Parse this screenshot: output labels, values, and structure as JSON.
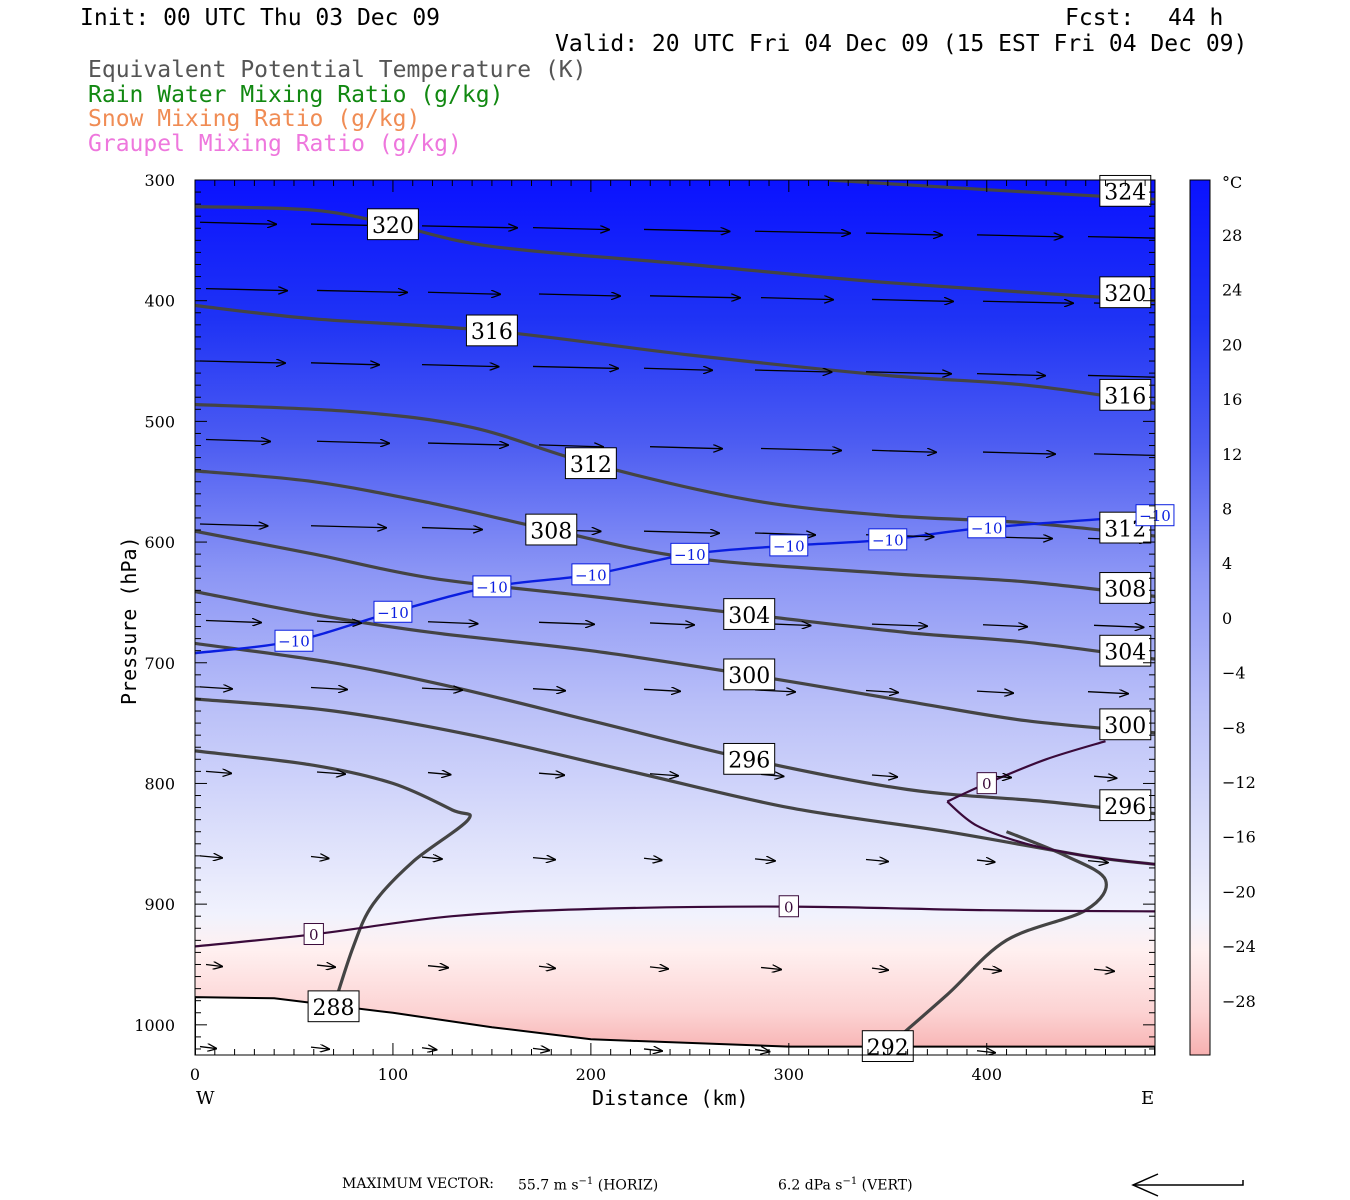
{
  "header": {
    "init": "Init: 00 UTC Thu 03 Dec 09",
    "fcst_label": "Fcst:",
    "fcst_value": "44 h",
    "valid": "Valid: 20 UTC Fri 04 Dec 09 (15 EST Fri 04 Dec 09)"
  },
  "legend": [
    {
      "text": "Equivalent Potential Temperature (K)",
      "color": "#555555"
    },
    {
      "text": "Rain Water Mixing Ratio (g/kg)",
      "color": "#118811"
    },
    {
      "text": "Snow Mixing Ratio (g/kg)",
      "color": "#f08c54"
    },
    {
      "text": "Graupel Mixing Ratio (g/kg)",
      "color": "#ee77dd"
    }
  ],
  "chart_data": {
    "type": "heatmap",
    "xlabel": "Distance (km)",
    "ylabel": "Pressure (hPa)",
    "xlim": [
      0,
      485
    ],
    "ylim": [
      1025,
      300
    ],
    "x_ticks": [
      "0",
      "100",
      "200",
      "300",
      "400"
    ],
    "y_ticks": [
      "300",
      "400",
      "500",
      "600",
      "700",
      "800",
      "900",
      "1000"
    ],
    "x_ends": [
      "W",
      "E"
    ],
    "colorbar": {
      "unit": "°C",
      "tick_labels": [
        "28",
        "24",
        "20",
        "16",
        "12",
        "8",
        "4",
        "0",
        "−4",
        "−8",
        "−12",
        "−16",
        "−20",
        "−24",
        "−28"
      ]
    },
    "theta_e_contours": [
      {
        "label": "324",
        "points": [
          [
            320,
            300
          ],
          [
            400,
            308
          ],
          [
            485,
            316
          ]
        ]
      },
      {
        "label": "320",
        "points": [
          [
            0,
            322
          ],
          [
            60,
            325
          ],
          [
            100,
            337
          ],
          [
            150,
            355
          ],
          [
            250,
            370
          ],
          [
            350,
            385
          ],
          [
            485,
            400
          ]
        ]
      },
      {
        "label": "316",
        "points": [
          [
            0,
            404
          ],
          [
            60,
            415
          ],
          [
            150,
            425
          ],
          [
            250,
            445
          ],
          [
            350,
            462
          ],
          [
            420,
            470
          ],
          [
            485,
            485
          ]
        ]
      },
      {
        "label": "312",
        "points": [
          [
            0,
            486
          ],
          [
            80,
            492
          ],
          [
            140,
            505
          ],
          [
            200,
            535
          ],
          [
            280,
            565
          ],
          [
            350,
            578
          ],
          [
            420,
            584
          ],
          [
            485,
            595
          ]
        ]
      },
      {
        "label": "308",
        "points": [
          [
            0,
            541
          ],
          [
            60,
            550
          ],
          [
            120,
            568
          ],
          [
            180,
            590
          ],
          [
            250,
            613
          ],
          [
            350,
            626
          ],
          [
            420,
            633
          ],
          [
            485,
            645
          ]
        ]
      },
      {
        "label": "304",
        "points": [
          [
            0,
            591
          ],
          [
            60,
            610
          ],
          [
            120,
            630
          ],
          [
            200,
            645
          ],
          [
            280,
            660
          ],
          [
            360,
            675
          ],
          [
            420,
            683
          ],
          [
            485,
            697
          ]
        ]
      },
      {
        "label": "300",
        "points": [
          [
            0,
            641
          ],
          [
            60,
            660
          ],
          [
            120,
            675
          ],
          [
            200,
            690
          ],
          [
            280,
            710
          ],
          [
            360,
            732
          ],
          [
            420,
            748
          ],
          [
            485,
            758
          ]
        ]
      },
      {
        "label": "296",
        "points": [
          [
            0,
            684
          ],
          [
            70,
            700
          ],
          [
            130,
            720
          ],
          [
            200,
            748
          ],
          [
            280,
            780
          ],
          [
            360,
            805
          ],
          [
            430,
            815
          ],
          [
            485,
            825
          ]
        ]
      },
      {
        "label": "",
        "points": [
          [
            0,
            730
          ],
          [
            70,
            740
          ],
          [
            140,
            760
          ],
          [
            220,
            790
          ],
          [
            300,
            820
          ],
          [
            380,
            840
          ],
          [
            450,
            860
          ],
          [
            485,
            867
          ]
        ]
      },
      {
        "label": "288",
        "points": [
          [
            0,
            773
          ],
          [
            60,
            785
          ],
          [
            100,
            800
          ],
          [
            130,
            822
          ],
          [
            138,
            830
          ],
          [
            110,
            865
          ],
          [
            90,
            900
          ],
          [
            80,
            935
          ],
          [
            70,
            985
          ]
        ]
      },
      {
        "label": "292",
        "points": [
          [
            410,
            840
          ],
          [
            440,
            860
          ],
          [
            460,
            880
          ],
          [
            450,
            905
          ],
          [
            410,
            930
          ],
          [
            380,
            975
          ],
          [
            350,
            1018
          ]
        ]
      }
    ],
    "temperature_contours": [
      {
        "label": "−10",
        "points": [
          [
            0,
            692
          ],
          [
            50,
            682
          ],
          [
            100,
            658
          ],
          [
            150,
            637
          ],
          [
            200,
            627
          ],
          [
            250,
            610
          ],
          [
            300,
            603
          ],
          [
            350,
            598
          ],
          [
            400,
            588
          ],
          [
            485,
            578
          ]
        ]
      },
      {
        "label": "0",
        "points": [
          [
            0,
            935
          ],
          [
            60,
            925
          ],
          [
            130,
            910
          ],
          [
            200,
            904
          ],
          [
            300,
            902
          ],
          [
            400,
            905
          ],
          [
            485,
            906
          ]
        ]
      },
      {
        "label": "0",
        "points": [
          [
            380,
            815
          ],
          [
            400,
            800
          ],
          [
            430,
            780
          ],
          [
            460,
            765
          ]
        ]
      },
      {
        "label": "",
        "points": [
          [
            380,
            815
          ],
          [
            395,
            835
          ],
          [
            420,
            850
          ],
          [
            450,
            860
          ],
          [
            485,
            867
          ]
        ]
      }
    ],
    "terrain_surface_hpa": [
      [
        0,
        977
      ],
      [
        40,
        978
      ],
      [
        100,
        990
      ],
      [
        150,
        1002
      ],
      [
        200,
        1012
      ],
      [
        300,
        1018
      ],
      [
        400,
        1018
      ],
      [
        485,
        1018
      ]
    ],
    "wind_vectors_note": "eastward",
    "footer": {
      "max_vector_label": "MAXIMUM VECTOR:",
      "horiz_value": "55.7 m s",
      "horiz_exp": "−1",
      "horiz_unit": "(HORIZ)",
      "vert_value": "6.2 dPa s",
      "vert_exp": "−1",
      "vert_unit": "(VERT)"
    }
  }
}
